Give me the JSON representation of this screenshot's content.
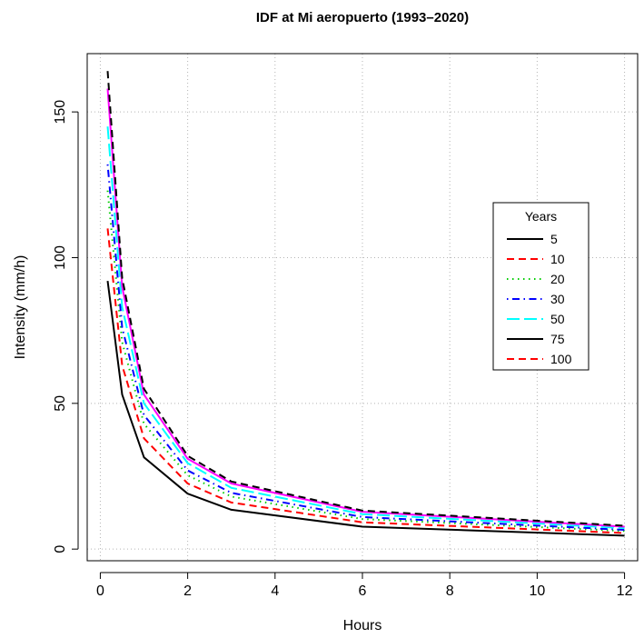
{
  "chart_data": {
    "type": "line",
    "title": "IDF at Mi aeropuerto (1993–2020)",
    "xlabel": "Hours",
    "ylabel": "Intensity (mm/h)",
    "xlim": [
      -0.3,
      12.3
    ],
    "ylim": [
      -4,
      170
    ],
    "xticks": [
      0,
      2,
      4,
      6,
      8,
      10,
      12
    ],
    "yticks": [
      0,
      50,
      100,
      150
    ],
    "grid": true,
    "legend": {
      "title": "Years",
      "position": "right-center"
    },
    "x": [
      0.167,
      0.5,
      1,
      2,
      3,
      6,
      12
    ],
    "series": [
      {
        "name": "5",
        "color": "#000000",
        "dash": "solid",
        "values": [
          92,
          53,
          31.5,
          19,
          13.5,
          7.7,
          4.6
        ]
      },
      {
        "name": "10",
        "color": "#ff0000",
        "dash": "dashed",
        "values": [
          110,
          63,
          38,
          22.5,
          16,
          9.2,
          5.5
        ]
      },
      {
        "name": "20",
        "color": "#00cd00",
        "dash": "dotted",
        "values": [
          123,
          71,
          43,
          25.3,
          18,
          10.3,
          6.2
        ]
      },
      {
        "name": "30",
        "color": "#0000ff",
        "dash": "dotdash",
        "values": [
          132,
          76,
          46,
          27,
          19.3,
          11,
          6.6
        ]
      },
      {
        "name": "50",
        "color": "#00ffff",
        "dash": "longdash",
        "values": [
          145,
          83,
          50,
          29.5,
          21,
          12,
          7.2
        ]
      },
      {
        "name": "75",
        "color": "#000000",
        "dash": "solid",
        "values": [
          null,
          null,
          null,
          null,
          null,
          null,
          null
        ]
      },
      {
        "name": "100",
        "color": "#ff0000",
        "dash": "dashed",
        "values": [
          null,
          null,
          null,
          null,
          null,
          null,
          null
        ]
      },
      {
        "name": "",
        "color": "#ff00ff",
        "dash": "solid",
        "values": [
          158,
          90,
          53,
          31,
          22.5,
          12.8,
          7.7
        ],
        "in_legend": false
      },
      {
        "name": "",
        "color": "#000000",
        "dash": "dashed",
        "values": [
          164,
          93,
          55,
          32,
          23.2,
          13.2,
          8.0
        ],
        "in_legend": false
      }
    ]
  }
}
